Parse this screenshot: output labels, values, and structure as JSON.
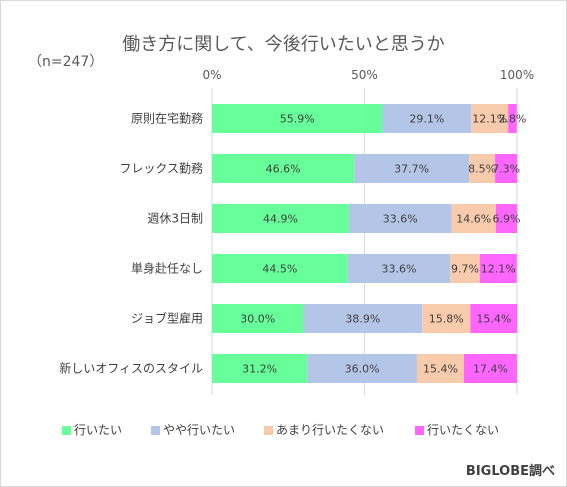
{
  "title": "働き方に関して、今後行いたいと思うか",
  "sample_size": "（n=247）",
  "source": "BIGLOBE調べ",
  "colors": [
    "#66ff99",
    "#b4c6e7",
    "#f8cbad",
    "#ff66ff"
  ],
  "chart_data": {
    "type": "bar",
    "orientation": "horizontal",
    "stacked": true,
    "percent_stacked": true,
    "title": "働き方に関して、今後行いたいと思うか",
    "categories": [
      "原則在宅勤務",
      "フレックス勤務",
      "週休3日制",
      "単身赴任なし",
      "ジョブ型雇用",
      "新しいオフィスのスタイル"
    ],
    "series": [
      {
        "name": "行いたい",
        "values": [
          55.9,
          46.6,
          44.9,
          44.5,
          30.0,
          31.2
        ]
      },
      {
        "name": "やや行いたい",
        "values": [
          29.1,
          37.7,
          33.6,
          33.6,
          38.9,
          36.0
        ]
      },
      {
        "name": "あまり行いたくない",
        "values": [
          12.1,
          8.5,
          14.6,
          9.7,
          15.8,
          15.4
        ]
      },
      {
        "name": "行いたくない",
        "values": [
          2.8,
          7.3,
          6.9,
          12.1,
          15.4,
          17.4
        ]
      }
    ],
    "x_ticks": [
      "0%",
      "50%",
      "100%"
    ],
    "xlim": [
      0,
      100
    ],
    "grid": true,
    "legend_position": "bottom",
    "data_labels": true
  }
}
